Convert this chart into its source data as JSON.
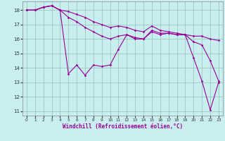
{
  "xlabel": "Windchill (Refroidissement éolien,°C)",
  "x": [
    0,
    1,
    2,
    3,
    4,
    5,
    6,
    7,
    8,
    9,
    10,
    11,
    12,
    13,
    14,
    15,
    16,
    17,
    18,
    19,
    20,
    21,
    22,
    23
  ],
  "line_zigzag": [
    18,
    18,
    18.2,
    18.3,
    18,
    13.6,
    14.2,
    13.5,
    14.2,
    14.1,
    14.2,
    15.3,
    16.3,
    16.0,
    16.0,
    16.5,
    16.3,
    16.4,
    16.3,
    16.3,
    14.7,
    13.1,
    11.1,
    13.0
  ],
  "line_top": [
    18,
    18,
    18.2,
    18.3,
    18,
    17.9,
    17.7,
    17.5,
    17.2,
    17.0,
    16.8,
    16.9,
    16.8,
    16.6,
    16.5,
    16.9,
    16.6,
    16.5,
    16.4,
    16.3,
    16.2,
    16.2,
    16.0,
    15.9
  ],
  "line_mid": [
    18,
    18,
    18.2,
    18.3,
    18,
    17.5,
    17.2,
    16.8,
    16.5,
    16.2,
    16.0,
    16.2,
    16.3,
    16.1,
    16.0,
    16.6,
    16.4,
    16.4,
    16.3,
    16.3,
    15.8,
    15.6,
    14.5,
    13.1
  ],
  "color": "#990099",
  "bg_color": "#c8eef0",
  "grid_color": "#99ccbb",
  "ylim_min": 10.7,
  "ylim_max": 18.6,
  "yticks": [
    11,
    12,
    13,
    14,
    15,
    16,
    17,
    18
  ],
  "xticks": [
    0,
    1,
    2,
    3,
    4,
    5,
    6,
    7,
    8,
    9,
    10,
    11,
    12,
    13,
    14,
    15,
    16,
    17,
    18,
    19,
    20,
    21,
    22,
    23
  ]
}
